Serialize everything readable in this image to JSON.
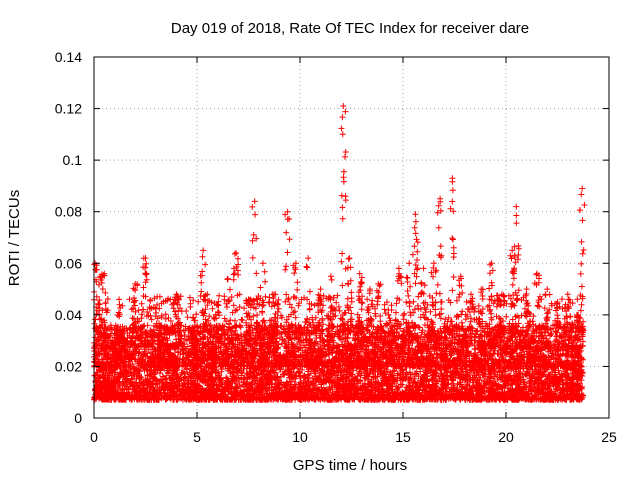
{
  "chart_data": {
    "type": "scatter",
    "title": "Day 019 of 2018, Rate Of TEC Index for receiver dare",
    "xlabel": "GPS time / hours",
    "ylabel": "ROTI / TECUs",
    "xlim": [
      0,
      25
    ],
    "ylim": [
      0,
      0.14
    ],
    "xticks": [
      0,
      5,
      10,
      15,
      20,
      25
    ],
    "yticks": [
      0,
      0.02,
      0.04,
      0.06,
      0.08,
      0.1,
      0.12,
      0.14
    ],
    "xtick_labels": [
      "0",
      "5",
      "10",
      "15",
      "20",
      "25"
    ],
    "ytick_labels": [
      "0",
      "0.02",
      "0.04",
      "0.06",
      "0.08",
      "0.1",
      "0.12",
      "0.14"
    ],
    "grid": true,
    "marker": "+",
    "color": "#ff0000",
    "data_extent_x": [
      0,
      23.75
    ],
    "baseline_band": [
      0.007,
      0.03
    ],
    "peaks": [
      {
        "x": 0.05,
        "y": 0.06
      },
      {
        "x": 0.3,
        "y": 0.055
      },
      {
        "x": 0.5,
        "y": 0.056
      },
      {
        "x": 1.4,
        "y": 0.034
      },
      {
        "x": 2.0,
        "y": 0.052
      },
      {
        "x": 2.5,
        "y": 0.062
      },
      {
        "x": 3.2,
        "y": 0.047
      },
      {
        "x": 4.0,
        "y": 0.048
      },
      {
        "x": 4.8,
        "y": 0.039
      },
      {
        "x": 5.3,
        "y": 0.065
      },
      {
        "x": 5.5,
        "y": 0.048
      },
      {
        "x": 6.0,
        "y": 0.044
      },
      {
        "x": 6.5,
        "y": 0.054
      },
      {
        "x": 6.9,
        "y": 0.064
      },
      {
        "x": 7.5,
        "y": 0.046
      },
      {
        "x": 7.8,
        "y": 0.084
      },
      {
        "x": 8.2,
        "y": 0.06
      },
      {
        "x": 8.8,
        "y": 0.048
      },
      {
        "x": 9.4,
        "y": 0.08
      },
      {
        "x": 9.8,
        "y": 0.06
      },
      {
        "x": 10.4,
        "y": 0.062
      },
      {
        "x": 11.0,
        "y": 0.05
      },
      {
        "x": 11.5,
        "y": 0.055
      },
      {
        "x": 12.1,
        "y": 0.121
      },
      {
        "x": 12.4,
        "y": 0.062
      },
      {
        "x": 12.9,
        "y": 0.056
      },
      {
        "x": 13.4,
        "y": 0.05
      },
      {
        "x": 13.8,
        "y": 0.052
      },
      {
        "x": 14.3,
        "y": 0.04
      },
      {
        "x": 14.8,
        "y": 0.058
      },
      {
        "x": 15.3,
        "y": 0.06
      },
      {
        "x": 15.6,
        "y": 0.079
      },
      {
        "x": 16.0,
        "y": 0.058
      },
      {
        "x": 16.5,
        "y": 0.06
      },
      {
        "x": 16.8,
        "y": 0.085
      },
      {
        "x": 17.4,
        "y": 0.093
      },
      {
        "x": 17.8,
        "y": 0.055
      },
      {
        "x": 18.3,
        "y": 0.048
      },
      {
        "x": 18.8,
        "y": 0.05
      },
      {
        "x": 19.3,
        "y": 0.06
      },
      {
        "x": 19.8,
        "y": 0.048
      },
      {
        "x": 20.3,
        "y": 0.065
      },
      {
        "x": 20.5,
        "y": 0.082
      },
      {
        "x": 21.0,
        "y": 0.05
      },
      {
        "x": 21.5,
        "y": 0.056
      },
      {
        "x": 22.0,
        "y": 0.05
      },
      {
        "x": 22.5,
        "y": 0.045
      },
      {
        "x": 23.0,
        "y": 0.048
      },
      {
        "x": 23.5,
        "y": 0.04
      },
      {
        "x": 23.7,
        "y": 0.089
      }
    ]
  }
}
